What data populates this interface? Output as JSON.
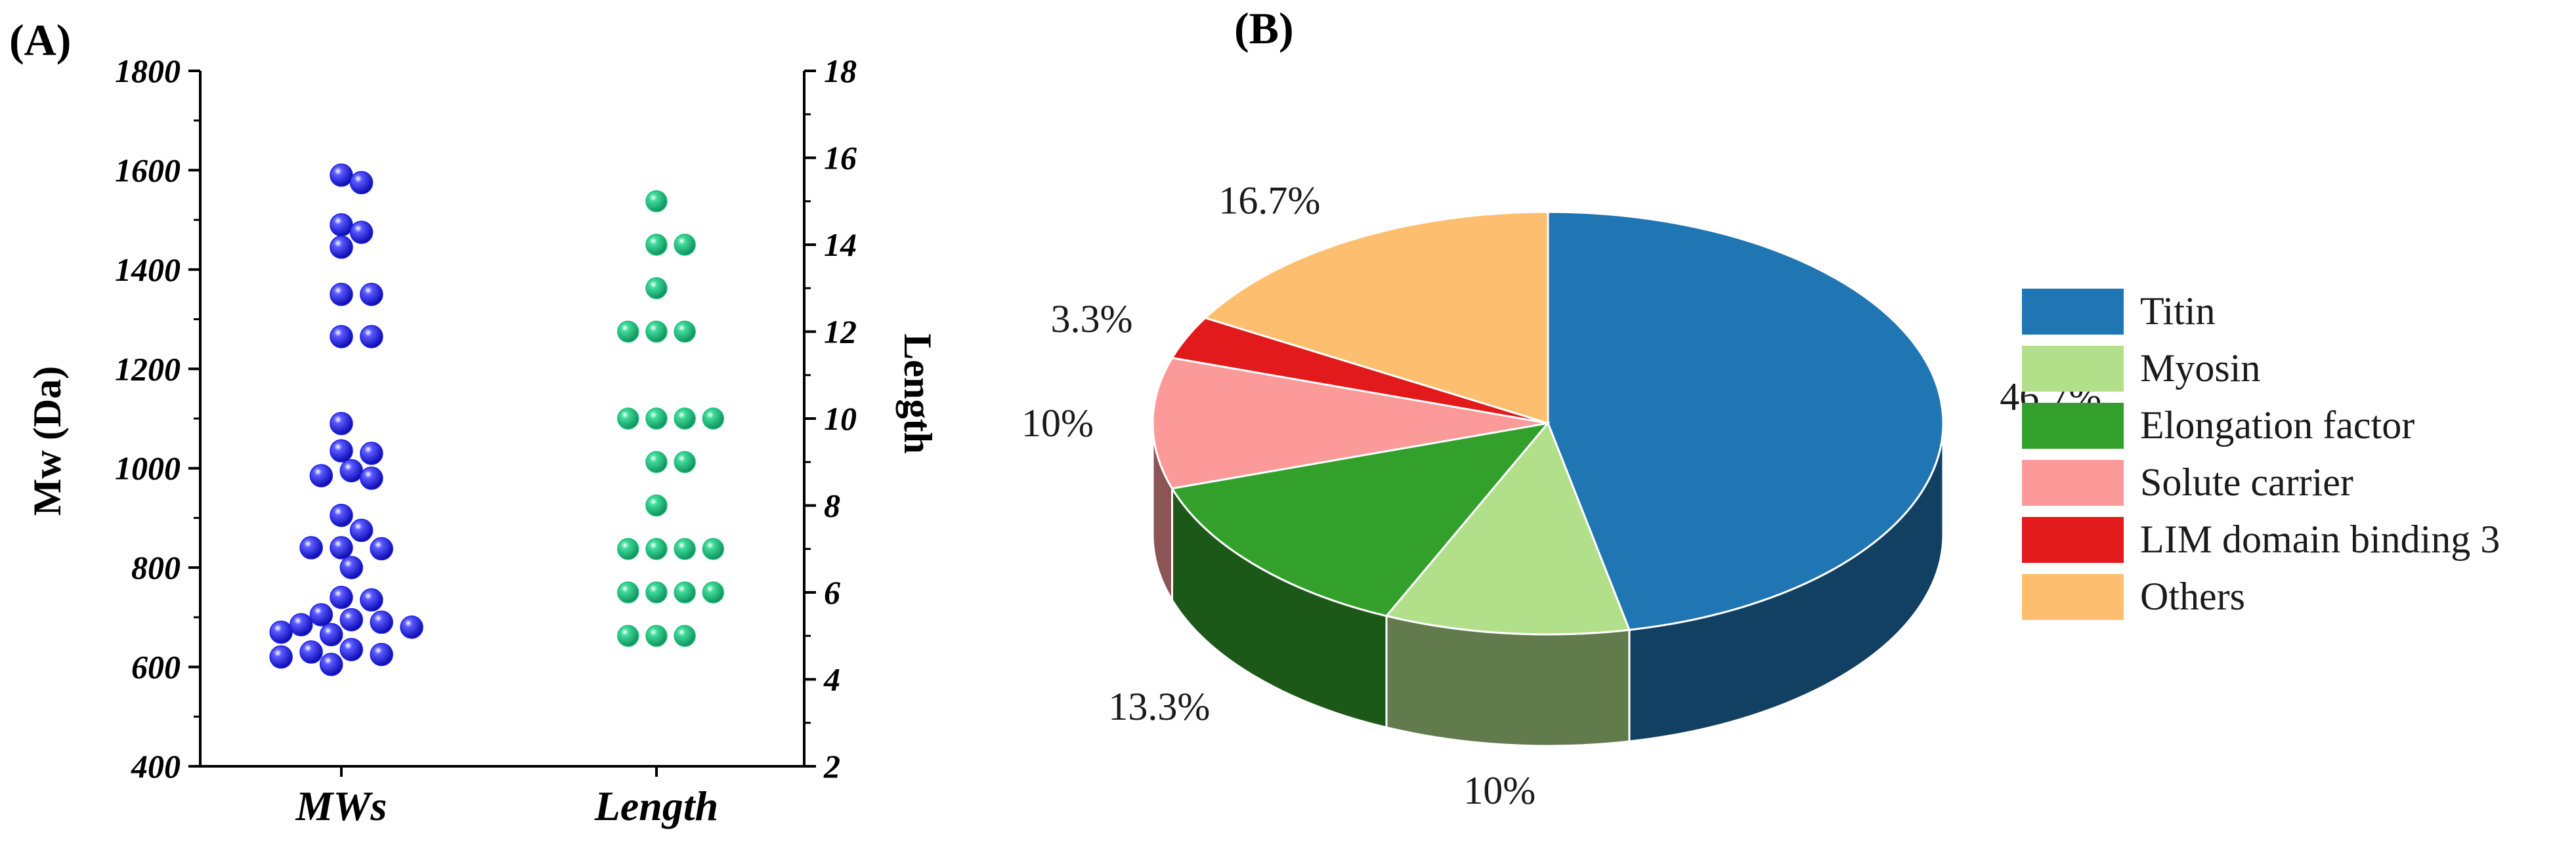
{
  "panel_a": {
    "label": "(A)",
    "chart_data": {
      "type": "scatter",
      "categories": [
        "MWs",
        "Length"
      ],
      "left_axis": {
        "label": "Mw (Da)",
        "ylim": [
          400,
          1800
        ],
        "ticks": [
          400,
          600,
          800,
          1000,
          1200,
          1400,
          1600,
          1800
        ]
      },
      "right_axis": {
        "label": "Length",
        "ylim": [
          2,
          18
        ],
        "ticks": [
          2,
          4,
          6,
          8,
          10,
          12,
          14,
          16,
          18
        ]
      },
      "series": [
        {
          "category": "MWs",
          "axis": "left",
          "color": "#1f1fe6",
          "values": [
            1590,
            1575,
            1490,
            1475,
            1445,
            1350,
            1350,
            1265,
            1265,
            1090,
            1035,
            1030,
            995,
            985,
            980,
            905,
            875,
            840,
            840,
            838,
            800,
            740,
            735,
            705,
            695,
            690,
            685,
            680,
            670,
            665,
            635,
            630,
            625,
            620,
            605
          ]
        },
        {
          "category": "Length",
          "axis": "right",
          "color": "#1fbf7f",
          "values": [
            15,
            14,
            14,
            13,
            12,
            12,
            12,
            10,
            10,
            10,
            10,
            9,
            9,
            8,
            7,
            7,
            7,
            7,
            6,
            6,
            6,
            6,
            5,
            5,
            5
          ]
        }
      ]
    }
  },
  "panel_b": {
    "label": "(B)",
    "chart_data": {
      "type": "pie",
      "slices": [
        {
          "name": "Titin",
          "value": 46.7,
          "label": "46.7%",
          "color": "#2075b3"
        },
        {
          "name": "Myosin",
          "value": 10,
          "label": "10%",
          "color": "#b2df8a"
        },
        {
          "name": "Elongation factor",
          "value": 13.3,
          "label": "13.3%",
          "color": "#33a02c"
        },
        {
          "name": "Solute carrier",
          "value": 10,
          "label": "10%",
          "color": "#fb9a99"
        },
        {
          "name": "LIM domain binding 3",
          "value": 3.3,
          "label": "3.3%",
          "color": "#e31a1c"
        },
        {
          "name": "Others",
          "value": 16.7,
          "label": "16.7%",
          "color": "#fdbf6f"
        }
      ],
      "legend_position": "right"
    }
  }
}
